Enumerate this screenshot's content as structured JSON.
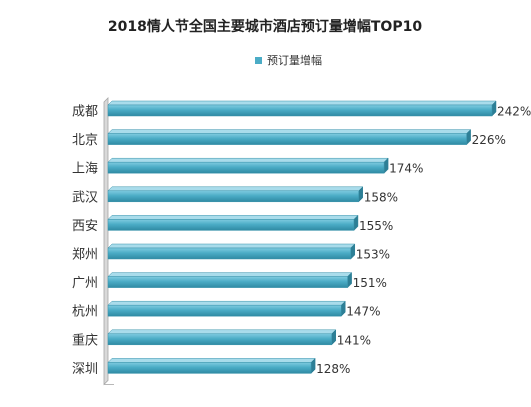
{
  "chart_data": {
    "type": "bar",
    "orientation": "horizontal",
    "title": "2018情人节全国主要城市酒店预订量增幅TOP10",
    "legend_position": "top-center",
    "grid": false,
    "value_suffix": "%",
    "xlim": [
      0,
      242
    ],
    "categories": [
      "成都",
      "北京",
      "上海",
      "武汉",
      "西安",
      "郑州",
      "广州",
      "杭州",
      "重庆",
      "深圳"
    ],
    "series": [
      {
        "name": "预订量增幅",
        "color": "#4BACC6",
        "values": [
          242,
          226,
          174,
          158,
          155,
          153,
          151,
          147,
          141,
          128
        ],
        "labels": [
          "242%",
          "226%",
          "174%",
          "158%",
          "155%",
          "153%",
          "151%",
          "147%",
          "141%",
          "128%"
        ]
      }
    ]
  }
}
